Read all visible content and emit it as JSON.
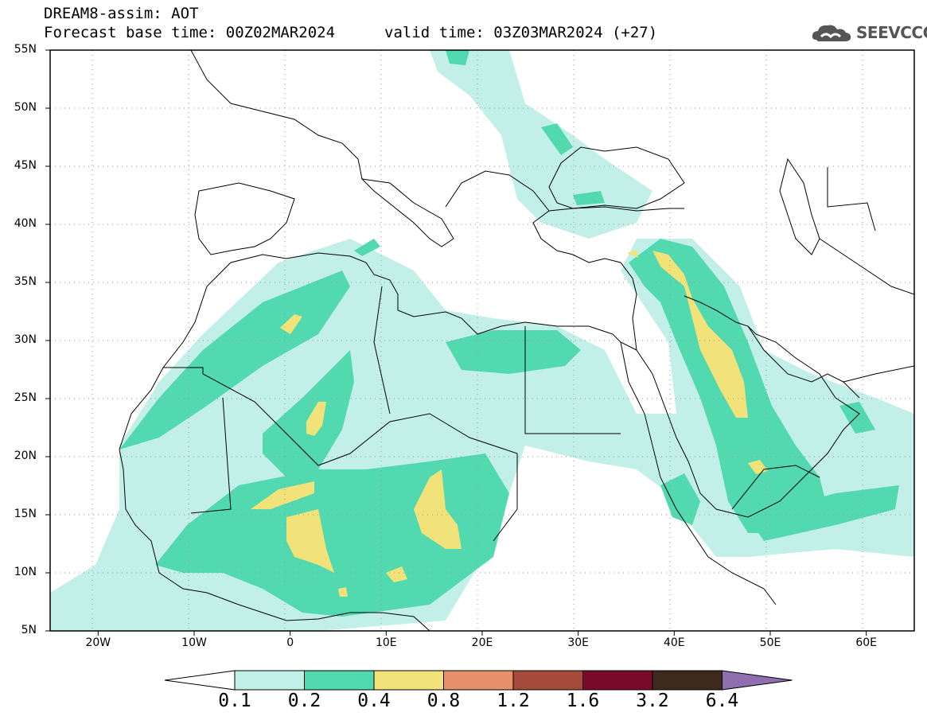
{
  "header": {
    "title_line1": "DREAM8-assim: AOT",
    "title_line2": "Forecast base time: 00Z02MAR2024",
    "valid_time": "valid time: 03Z03MAR2024 (+27)",
    "logo_text": "SEEVCCC"
  },
  "map": {
    "lat_labels": [
      "55N",
      "50N",
      "45N",
      "40N",
      "35N",
      "30N",
      "25N",
      "20N",
      "15N",
      "10N",
      "5N"
    ],
    "lon_labels": [
      "20W",
      "10W",
      "0",
      "10E",
      "20E",
      "30E",
      "40E",
      "50E",
      "60E"
    ],
    "lat_range": [
      5,
      55
    ],
    "lon_range": [
      -25,
      65
    ],
    "quantity": "AOT"
  },
  "colorbar": {
    "levels": [
      "0.1",
      "0.2",
      "0.4",
      "0.8",
      "1.2",
      "1.6",
      "3.2",
      "6.4"
    ],
    "colors": [
      "#c2f0e8",
      "#52d9b0",
      "#f2e27a",
      "#e8906a",
      "#a64b3c",
      "#7a0a2a",
      "#3e2a1c",
      "#8f6fb0"
    ]
  }
}
